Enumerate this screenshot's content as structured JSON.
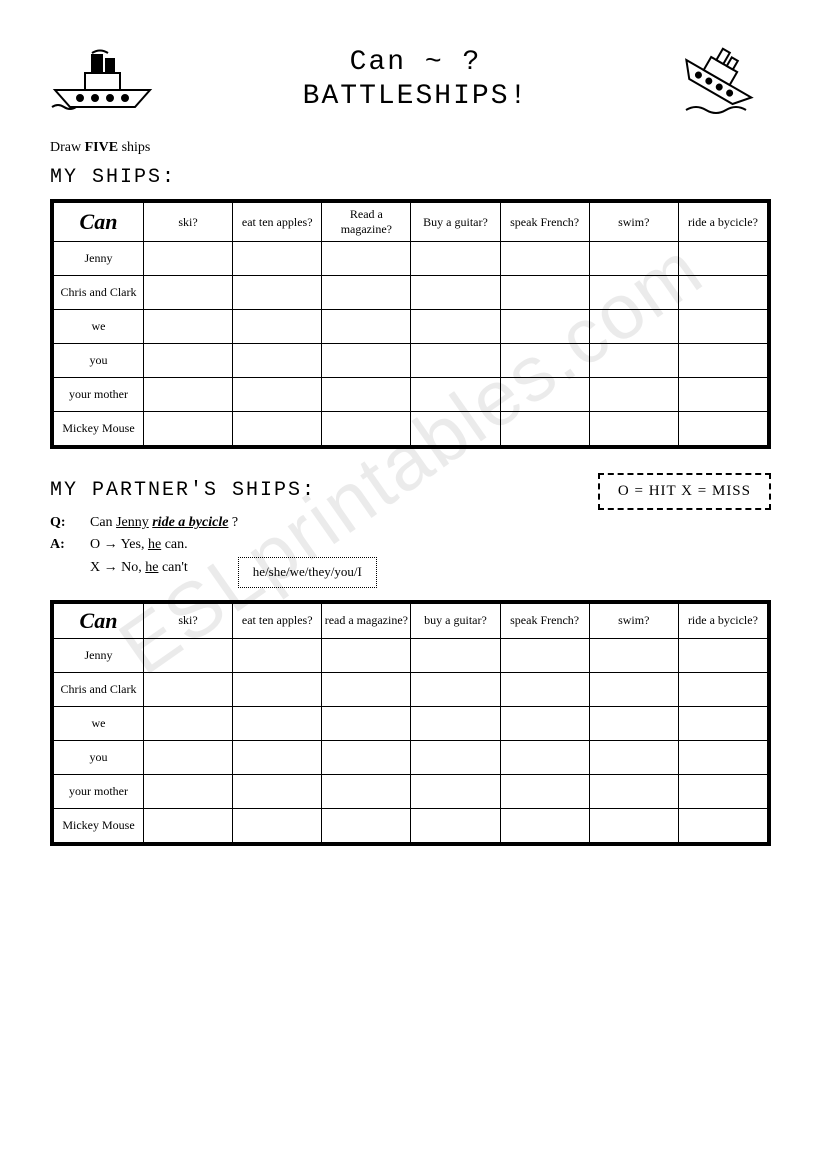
{
  "title_line1": "Can ~ ?",
  "title_line2": "BATTLESHIPS!",
  "instruction_pre": "Draw ",
  "instruction_bold": "FIVE",
  "instruction_post": " ships",
  "section1_label": "MY SHIPS:",
  "section2_label": "MY PARTNER'S SHIPS:",
  "corner_label": "Can",
  "columns": [
    "ski?",
    "eat ten apples?",
    "Read a magazine?",
    "Buy a guitar?",
    "speak French?",
    "swim?",
    "ride a bycicle?"
  ],
  "columns2": [
    "ski?",
    "eat ten apples?",
    "read a magazine?",
    "buy a guitar?",
    "speak French?",
    "swim?",
    "ride a bycicle?"
  ],
  "rows": [
    "Jenny",
    "Chris and Clark",
    "we",
    "you",
    "your mother",
    "Mickey Mouse"
  ],
  "legend": "O = HIT   X = MISS",
  "qa": {
    "q_label": "Q:",
    "q_pre": "Can ",
    "q_subj": "Jenny",
    "q_mid": " ",
    "q_verb": "ride a bycicle",
    "q_post": " ?",
    "a_label": "A:",
    "a_line1_pre": "O → Yes, ",
    "a_line1_u": "he",
    "a_line1_post": " can.",
    "a_line2_pre": "X → No, ",
    "a_line2_u": "he",
    "a_line2_post": " can't"
  },
  "pronouns": "he/she/we/they/you/I",
  "watermark": "ESLprintables.com"
}
